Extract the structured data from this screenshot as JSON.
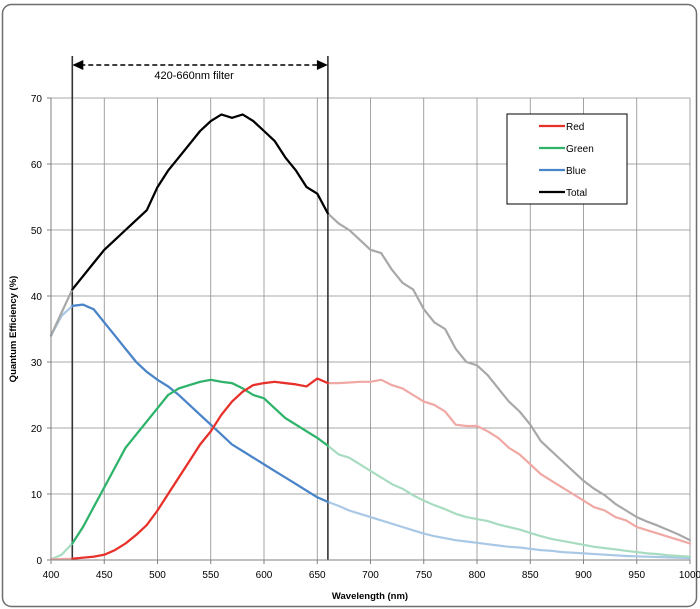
{
  "chart_data": {
    "type": "line",
    "xlabel": "Wavelength (nm)",
    "ylabel": "Quantum Efficiency (%)",
    "xlim": [
      400,
      1000
    ],
    "ylim": [
      0,
      70
    ],
    "x_ticks": [
      "400",
      "450",
      "500",
      "550",
      "600",
      "650",
      "700",
      "750",
      "800",
      "850",
      "900",
      "950",
      "1000"
    ],
    "y_ticks": [
      "0",
      "10",
      "20",
      "30",
      "40",
      "50",
      "60",
      "70"
    ],
    "grid": true,
    "legend_position": "top-right",
    "annotation": {
      "text": "420-660nm filter",
      "range": [
        420,
        660
      ]
    },
    "series": [
      {
        "name": "Red",
        "color": "#e8302a",
        "faded_color": "#f0a8a4",
        "points": [
          [
            400,
            0.1
          ],
          [
            420,
            0.2
          ],
          [
            440,
            0.5
          ],
          [
            450,
            0.8
          ],
          [
            460,
            1.5
          ],
          [
            470,
            2.5
          ],
          [
            480,
            3.8
          ],
          [
            490,
            5.3
          ],
          [
            500,
            7.5
          ],
          [
            510,
            10
          ],
          [
            520,
            12.5
          ],
          [
            530,
            15
          ],
          [
            540,
            17.5
          ],
          [
            550,
            19.5
          ],
          [
            560,
            22
          ],
          [
            570,
            24
          ],
          [
            580,
            25.5
          ],
          [
            590,
            26.5
          ],
          [
            600,
            26.8
          ],
          [
            610,
            27
          ],
          [
            620,
            26.8
          ],
          [
            630,
            26.6
          ],
          [
            640,
            26.3
          ],
          [
            650,
            27.5
          ],
          [
            660,
            26.8
          ],
          [
            670,
            26.8
          ],
          [
            680,
            26.9
          ],
          [
            690,
            27
          ],
          [
            700,
            27
          ],
          [
            710,
            27.3
          ],
          [
            720,
            26.5
          ],
          [
            730,
            26
          ],
          [
            740,
            25
          ],
          [
            750,
            24
          ],
          [
            760,
            23.5
          ],
          [
            770,
            22.5
          ],
          [
            780,
            20.5
          ],
          [
            790,
            20.3
          ],
          [
            800,
            20.3
          ],
          [
            810,
            19.5
          ],
          [
            820,
            18.5
          ],
          [
            830,
            17
          ],
          [
            840,
            16
          ],
          [
            850,
            14.5
          ],
          [
            860,
            13
          ],
          [
            870,
            12
          ],
          [
            880,
            11
          ],
          [
            890,
            10
          ],
          [
            900,
            9
          ],
          [
            910,
            8
          ],
          [
            920,
            7.5
          ],
          [
            930,
            6.5
          ],
          [
            940,
            6
          ],
          [
            950,
            5
          ],
          [
            960,
            4.5
          ],
          [
            970,
            4
          ],
          [
            980,
            3.5
          ],
          [
            990,
            3
          ],
          [
            1000,
            2.5
          ]
        ]
      },
      {
        "name": "Green",
        "color": "#2fb36a",
        "faded_color": "#a8dcc0",
        "points": [
          [
            400,
            0.1
          ],
          [
            410,
            0.8
          ],
          [
            420,
            2.5
          ],
          [
            430,
            5
          ],
          [
            440,
            8
          ],
          [
            450,
            11
          ],
          [
            460,
            14
          ],
          [
            470,
            17
          ],
          [
            480,
            19
          ],
          [
            490,
            21
          ],
          [
            500,
            23
          ],
          [
            510,
            25
          ],
          [
            520,
            26
          ],
          [
            530,
            26.5
          ],
          [
            540,
            27
          ],
          [
            550,
            27.3
          ],
          [
            560,
            27
          ],
          [
            570,
            26.8
          ],
          [
            580,
            26
          ],
          [
            590,
            25
          ],
          [
            600,
            24.5
          ],
          [
            610,
            23
          ],
          [
            620,
            21.5
          ],
          [
            630,
            20.5
          ],
          [
            640,
            19.5
          ],
          [
            650,
            18.5
          ],
          [
            660,
            17.3
          ],
          [
            670,
            16
          ],
          [
            680,
            15.5
          ],
          [
            690,
            14.5
          ],
          [
            700,
            13.5
          ],
          [
            710,
            12.5
          ],
          [
            720,
            11.5
          ],
          [
            730,
            10.8
          ],
          [
            740,
            9.8
          ],
          [
            750,
            9
          ],
          [
            760,
            8.3
          ],
          [
            770,
            7.7
          ],
          [
            780,
            7
          ],
          [
            790,
            6.5
          ],
          [
            800,
            6.2
          ],
          [
            810,
            5.9
          ],
          [
            820,
            5.4
          ],
          [
            830,
            5
          ],
          [
            840,
            4.6
          ],
          [
            850,
            4.1
          ],
          [
            860,
            3.6
          ],
          [
            870,
            3.2
          ],
          [
            880,
            2.9
          ],
          [
            890,
            2.6
          ],
          [
            900,
            2.3
          ],
          [
            910,
            2
          ],
          [
            920,
            1.8
          ],
          [
            930,
            1.6
          ],
          [
            940,
            1.4
          ],
          [
            950,
            1.2
          ],
          [
            960,
            1
          ],
          [
            970,
            0.9
          ],
          [
            980,
            0.7
          ],
          [
            990,
            0.6
          ],
          [
            1000,
            0.5
          ]
        ]
      },
      {
        "name": "Blue",
        "color": "#4a84c8",
        "faded_color": "#a9c8e6",
        "points": [
          [
            400,
            34
          ],
          [
            410,
            37
          ],
          [
            420,
            38.5
          ],
          [
            430,
            38.7
          ],
          [
            440,
            38
          ],
          [
            450,
            36
          ],
          [
            460,
            34
          ],
          [
            470,
            32
          ],
          [
            480,
            30
          ],
          [
            490,
            28.5
          ],
          [
            500,
            27.3
          ],
          [
            510,
            26.3
          ],
          [
            520,
            25
          ],
          [
            530,
            23.5
          ],
          [
            540,
            22
          ],
          [
            550,
            20.5
          ],
          [
            560,
            19
          ],
          [
            570,
            17.5
          ],
          [
            580,
            16.5
          ],
          [
            590,
            15.5
          ],
          [
            600,
            14.5
          ],
          [
            610,
            13.5
          ],
          [
            620,
            12.5
          ],
          [
            630,
            11.5
          ],
          [
            640,
            10.5
          ],
          [
            650,
            9.5
          ],
          [
            660,
            8.8
          ],
          [
            670,
            8.2
          ],
          [
            680,
            7.5
          ],
          [
            690,
            7
          ],
          [
            700,
            6.5
          ],
          [
            710,
            6
          ],
          [
            720,
            5.5
          ],
          [
            730,
            5
          ],
          [
            740,
            4.5
          ],
          [
            750,
            4
          ],
          [
            760,
            3.6
          ],
          [
            770,
            3.3
          ],
          [
            780,
            3
          ],
          [
            790,
            2.8
          ],
          [
            800,
            2.6
          ],
          [
            810,
            2.4
          ],
          [
            820,
            2.2
          ],
          [
            830,
            2
          ],
          [
            840,
            1.9
          ],
          [
            850,
            1.7
          ],
          [
            860,
            1.5
          ],
          [
            870,
            1.4
          ],
          [
            880,
            1.2
          ],
          [
            890,
            1.1
          ],
          [
            900,
            1
          ],
          [
            920,
            0.8
          ],
          [
            940,
            0.6
          ],
          [
            960,
            0.5
          ],
          [
            980,
            0.4
          ],
          [
            1000,
            0.3
          ]
        ]
      },
      {
        "name": "Total",
        "color": "#000000",
        "faded_color": "#a8a8a8",
        "points": [
          [
            400,
            34
          ],
          [
            410,
            37.5
          ],
          [
            420,
            41
          ],
          [
            430,
            43
          ],
          [
            440,
            45
          ],
          [
            450,
            47
          ],
          [
            460,
            48.5
          ],
          [
            470,
            50
          ],
          [
            480,
            51.5
          ],
          [
            490,
            53
          ],
          [
            500,
            56.5
          ],
          [
            510,
            59
          ],
          [
            520,
            61
          ],
          [
            530,
            63
          ],
          [
            540,
            65
          ],
          [
            550,
            66.5
          ],
          [
            560,
            67.5
          ],
          [
            570,
            67
          ],
          [
            580,
            67.5
          ],
          [
            590,
            66.5
          ],
          [
            600,
            65
          ],
          [
            610,
            63.5
          ],
          [
            620,
            61
          ],
          [
            630,
            59
          ],
          [
            640,
            56.5
          ],
          [
            650,
            55.5
          ],
          [
            660,
            52.5
          ],
          [
            670,
            51
          ],
          [
            680,
            50
          ],
          [
            690,
            48.5
          ],
          [
            700,
            47
          ],
          [
            710,
            46.5
          ],
          [
            720,
            44
          ],
          [
            730,
            42
          ],
          [
            740,
            41
          ],
          [
            750,
            38
          ],
          [
            760,
            36
          ],
          [
            770,
            35
          ],
          [
            780,
            32
          ],
          [
            790,
            30
          ],
          [
            800,
            29.5
          ],
          [
            810,
            28
          ],
          [
            820,
            26
          ],
          [
            830,
            24
          ],
          [
            840,
            22.5
          ],
          [
            850,
            20.5
          ],
          [
            860,
            18
          ],
          [
            870,
            16.5
          ],
          [
            880,
            15
          ],
          [
            890,
            13.5
          ],
          [
            900,
            12
          ],
          [
            910,
            10.8
          ],
          [
            920,
            9.8
          ],
          [
            930,
            8.5
          ],
          [
            940,
            7.5
          ],
          [
            950,
            6.5
          ],
          [
            960,
            5.8
          ],
          [
            970,
            5.2
          ],
          [
            980,
            4.5
          ],
          [
            990,
            3.8
          ],
          [
            1000,
            3
          ]
        ]
      }
    ]
  }
}
